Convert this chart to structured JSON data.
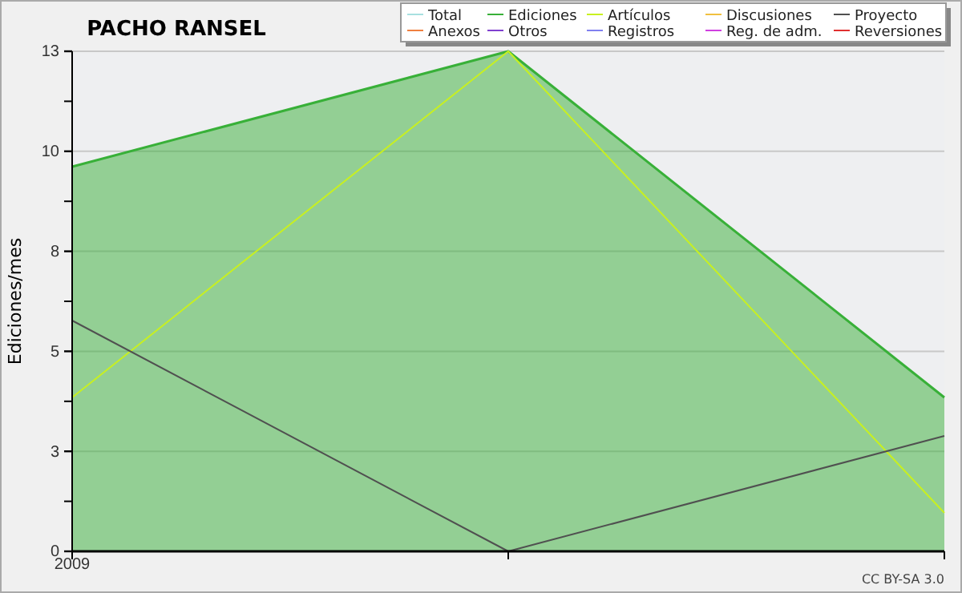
{
  "chart_data": {
    "type": "line",
    "title": "PACHO RANSEL",
    "ylabel": "Ediciones/mes",
    "categories": [
      "2009",
      null,
      null
    ],
    "ylim": [
      0,
      13
    ],
    "yticks": [
      {
        "value": 0,
        "label": "0"
      },
      {
        "value": 1.3,
        "label": null
      },
      {
        "value": 2.6,
        "label": "3"
      },
      {
        "value": 3.9,
        "label": null
      },
      {
        "value": 5.2,
        "label": "5"
      },
      {
        "value": 6.5,
        "label": null
      },
      {
        "value": 7.8,
        "label": "8"
      },
      {
        "value": 9.1,
        "label": null
      },
      {
        "value": 10.4,
        "label": "10"
      },
      {
        "value": 11.7,
        "label": null
      },
      {
        "value": 13,
        "label": "13"
      }
    ],
    "grid": "y",
    "legend": "top right",
    "annotations": [
      "CC BY-SA 3.0"
    ],
    "series": [
      {
        "name": "Total",
        "color": "#a8e0e0",
        "values": [
          null,
          null,
          null
        ]
      },
      {
        "name": "Ediciones",
        "color": "#38b038",
        "type": "area",
        "values": [
          10,
          13,
          4
        ]
      },
      {
        "name": "Artículos",
        "color": "#c8f020",
        "values": [
          4,
          13,
          1
        ]
      },
      {
        "name": "Discusiones",
        "color": "#f0c040",
        "values": [
          null,
          null,
          null
        ]
      },
      {
        "name": "Proyecto",
        "color": "#505050",
        "values": [
          6,
          0,
          3
        ]
      },
      {
        "name": "Anexos",
        "color": "#f08040",
        "values": [
          null,
          null,
          null
        ]
      },
      {
        "name": "Otros",
        "color": "#8040d0",
        "values": [
          null,
          null,
          null
        ]
      },
      {
        "name": "Registros",
        "color": "#8080f0",
        "values": [
          null,
          null,
          null
        ]
      },
      {
        "name": "Reg. de adm.",
        "color": "#d040e0",
        "values": [
          null,
          null,
          null
        ]
      },
      {
        "name": "Reversiones",
        "color": "#e03030",
        "values": [
          null,
          null,
          null
        ]
      }
    ]
  }
}
